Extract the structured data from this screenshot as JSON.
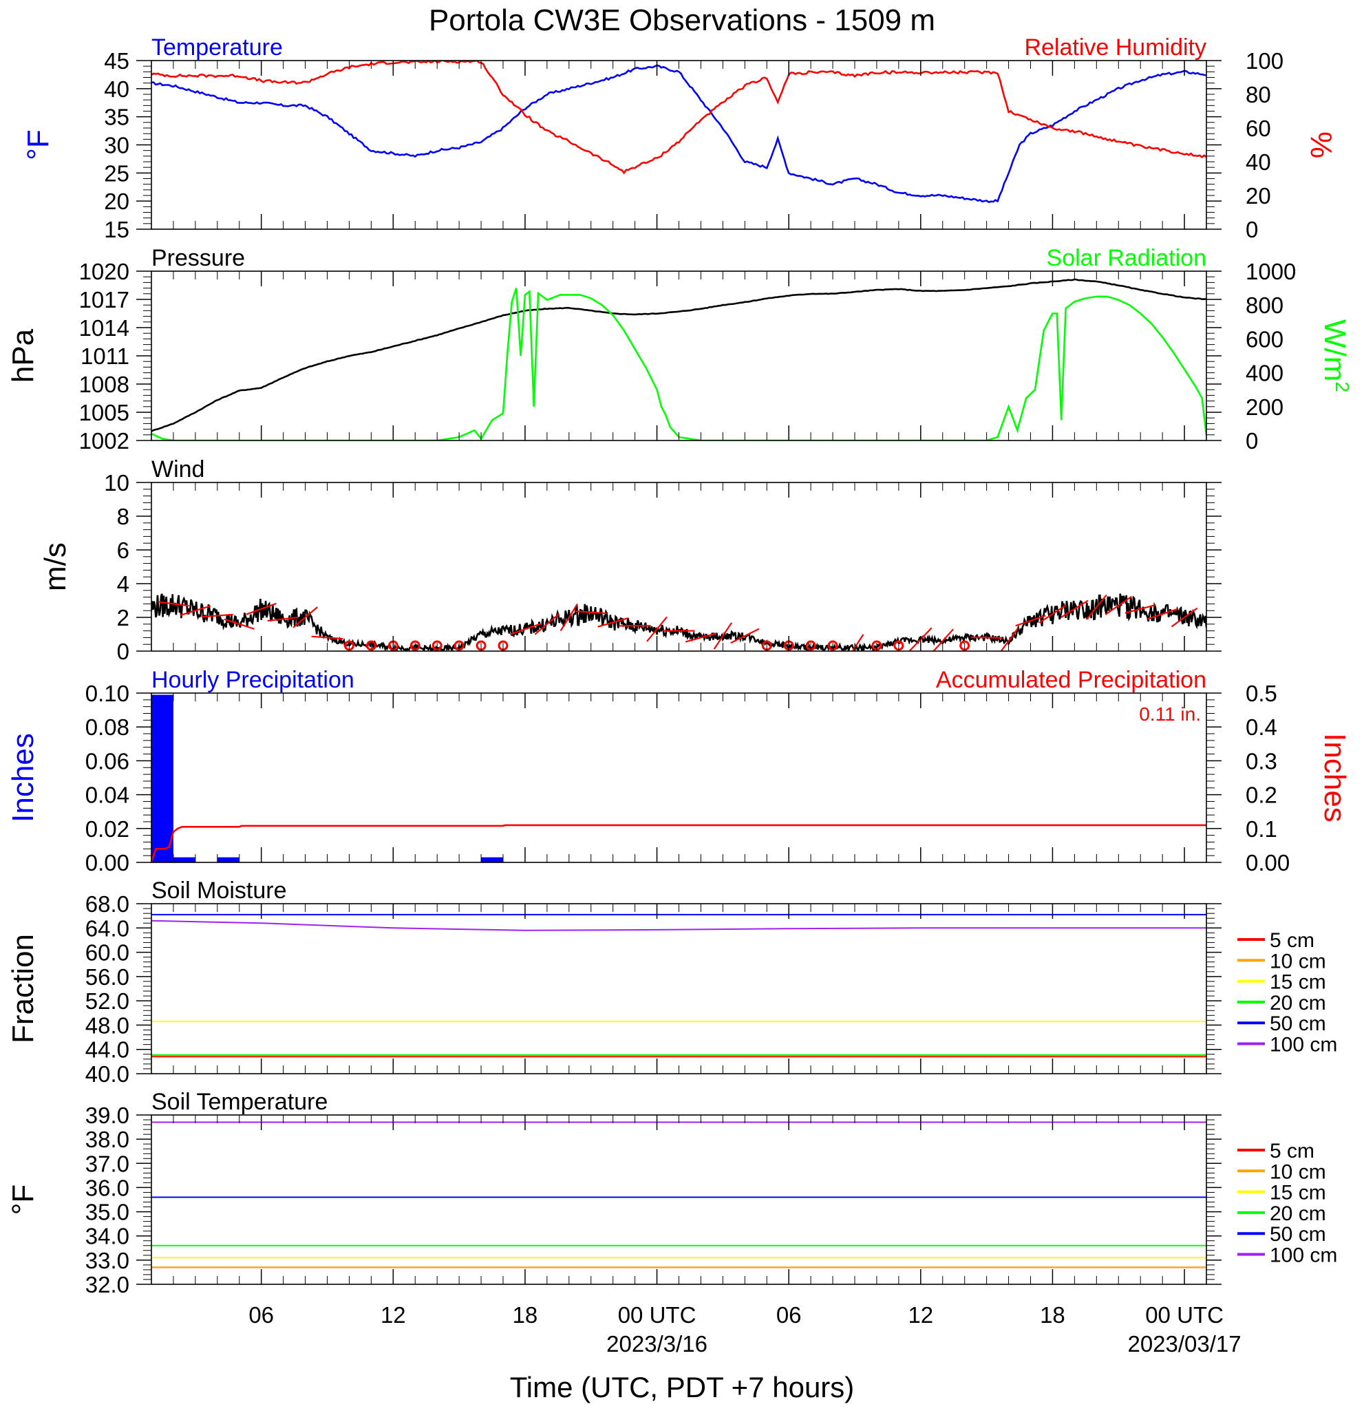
{
  "figure": {
    "title": "Portola CW3E Observations - 1509 m",
    "xlabel": "Time (UTC, PDT +7 hours)",
    "x_ticks": [
      {
        "hour": 6,
        "label": "06",
        "sub": ""
      },
      {
        "hour": 12,
        "label": "12",
        "sub": ""
      },
      {
        "hour": 18,
        "label": "18",
        "sub": ""
      },
      {
        "hour": 24,
        "label": "00 UTC",
        "sub": "2023/3/16"
      },
      {
        "hour": 30,
        "label": "06",
        "sub": ""
      },
      {
        "hour": 36,
        "label": "12",
        "sub": ""
      },
      {
        "hour": 42,
        "label": "18",
        "sub": ""
      },
      {
        "hour": 48,
        "label": "00 UTC",
        "sub": "2023/03/17"
      }
    ],
    "x_range_hours": [
      1,
      49
    ],
    "colors": {
      "blue": "#0000ff",
      "red": "#ff0000",
      "green": "#00ff00",
      "black": "#000000",
      "orange": "#ffa500",
      "yellow": "#ffff00",
      "purple": "#a020f0"
    }
  },
  "chart_data": [
    {
      "id": "temp_rh",
      "type": "line",
      "title_left": "Temperature",
      "title_right": "Relative Humidity",
      "ylabel_left": "°F",
      "ylabel_right": "%",
      "ylim_left": [
        15,
        45
      ],
      "yticks_left": [
        "15",
        "20",
        "25",
        "30",
        "35",
        "40",
        "45"
      ],
      "ylim_right": [
        0,
        100
      ],
      "yticks_right": [
        "0",
        "20",
        "40",
        "60",
        "80",
        "100"
      ],
      "series": [
        {
          "name": "Temperature",
          "axis": "left",
          "color": "#0000ff",
          "x": [
            1,
            2,
            3,
            4,
            5,
            6,
            7,
            8,
            9,
            10,
            11,
            12,
            13,
            14,
            15,
            16,
            17,
            18,
            19,
            20,
            21,
            22,
            23,
            24,
            25,
            26,
            27,
            28,
            29,
            29.5,
            30,
            31,
            32,
            33,
            34,
            35,
            36,
            37,
            38,
            39,
            39.5,
            40,
            40.5,
            41,
            42,
            43,
            44,
            45,
            46,
            47,
            48,
            49
          ],
          "y": [
            41,
            40.5,
            39.5,
            38.5,
            37.5,
            37.5,
            37,
            37,
            35,
            32,
            29,
            28.5,
            28,
            29,
            29.5,
            30.5,
            33,
            36.5,
            39,
            40,
            41,
            42,
            43.5,
            44,
            43,
            38,
            33,
            27,
            26,
            31,
            25,
            24,
            23,
            24,
            23,
            21.5,
            21,
            21,
            20.5,
            20,
            20,
            25,
            30,
            32,
            33.5,
            36,
            38,
            40,
            41.5,
            42.5,
            43,
            42.5
          ]
        },
        {
          "name": "Relative Humidity",
          "axis": "right",
          "color": "#ff0000",
          "x": [
            1,
            2,
            3,
            4,
            5,
            6,
            7,
            8,
            9,
            10,
            11,
            12,
            13,
            14,
            15,
            16,
            17,
            18,
            19,
            20,
            21,
            22,
            22.5,
            23,
            24,
            25,
            26,
            27,
            28,
            29,
            29.5,
            30,
            31,
            32,
            33,
            34,
            35,
            36,
            37,
            38,
            39,
            39.5,
            40,
            41,
            42,
            43,
            44,
            45,
            46,
            47,
            48,
            49
          ],
          "y": [
            92,
            91,
            91,
            91,
            91,
            88,
            87,
            87,
            92,
            96,
            98,
            99,
            99,
            99.5,
            99.5,
            99.5,
            80,
            68,
            58,
            52,
            45,
            38,
            34,
            37,
            42,
            52,
            65,
            75,
            85,
            90,
            75,
            92,
            93,
            93,
            91,
            93,
            93,
            93,
            93,
            93,
            93,
            93,
            70,
            65,
            60,
            58,
            55,
            52,
            49,
            47,
            45,
            43
          ]
        }
      ]
    },
    {
      "id": "pressure_solar",
      "type": "line",
      "title_left": "Pressure",
      "title_right": "Solar Radiation",
      "ylabel_left": "hPa",
      "ylabel_right": "W/m",
      "ylabel_right_sup": "2",
      "ylim_left": [
        1002,
        1020
      ],
      "yticks_left": [
        "1002",
        "1005",
        "1008",
        "1011",
        "1014",
        "1017",
        "1020"
      ],
      "ylim_right": [
        0,
        1000
      ],
      "yticks_right": [
        "0",
        "200",
        "400",
        "600",
        "800",
        "1000"
      ],
      "series": [
        {
          "name": "Pressure",
          "axis": "left",
          "color": "#000000",
          "x": [
            1,
            2,
            3,
            4,
            5,
            6,
            7,
            8,
            9,
            10,
            11,
            12,
            13,
            14,
            15,
            16,
            17,
            18,
            19,
            20,
            21,
            22,
            23,
            24,
            25,
            26,
            27,
            28,
            29,
            30,
            31,
            32,
            33,
            34,
            35,
            36,
            37,
            38,
            39,
            40,
            41,
            42,
            43,
            44,
            45,
            46,
            47,
            48,
            49
          ],
          "y": [
            1003,
            1003.8,
            1005,
            1006.3,
            1007.3,
            1007.6,
            1008.7,
            1009.7,
            1010.4,
            1011,
            1011.4,
            1012,
            1012.6,
            1013.2,
            1013.9,
            1014.6,
            1015.3,
            1015.8,
            1016,
            1016.1,
            1015.8,
            1015.5,
            1015.4,
            1015.5,
            1015.7,
            1016,
            1016.4,
            1016.7,
            1017.1,
            1017.4,
            1017.6,
            1017.6,
            1017.8,
            1018,
            1018.1,
            1017.9,
            1017.9,
            1018,
            1018.2,
            1018.4,
            1018.7,
            1018.9,
            1019.1,
            1018.9,
            1018.5,
            1018,
            1017.6,
            1017.2,
            1017
          ]
        },
        {
          "name": "Solar Radiation",
          "axis": "right",
          "color": "#00ff00",
          "x": [
            1,
            1.5,
            2,
            13,
            14,
            15,
            15.7,
            16,
            16.5,
            17,
            17.2,
            17.4,
            17.6,
            17.8,
            18,
            18.2,
            18.4,
            18.6,
            18.8,
            19,
            19.2,
            19.4,
            19.6,
            20,
            20.5,
            21,
            21.5,
            22,
            22.5,
            23,
            23.5,
            24,
            24.2,
            24.4,
            24.6,
            25,
            26,
            38,
            39,
            39.5,
            40,
            40.4,
            40.8,
            41.2,
            41.6,
            41.8,
            42,
            42.2,
            42.4,
            42.6,
            43,
            43.5,
            44,
            44.5,
            45,
            45.5,
            46,
            46.5,
            47,
            47.5,
            48,
            48.5,
            48.8,
            49
          ],
          "y": [
            40,
            10,
            0,
            0,
            0,
            20,
            60,
            10,
            120,
            160,
            520,
            820,
            900,
            500,
            860,
            880,
            200,
            870,
            850,
            830,
            840,
            850,
            860,
            860,
            860,
            840,
            800,
            740,
            650,
            540,
            430,
            300,
            200,
            150,
            80,
            20,
            0,
            0,
            0,
            20,
            200,
            60,
            250,
            300,
            650,
            700,
            750,
            750,
            120,
            780,
            820,
            840,
            850,
            850,
            830,
            800,
            750,
            690,
            610,
            520,
            420,
            320,
            250,
            30
          ]
        }
      ]
    },
    {
      "id": "wind",
      "type": "line",
      "title_left": "Wind",
      "title_right": "",
      "ylabel_left": "m/s",
      "ylim_left": [
        0,
        10
      ],
      "yticks_left": [
        "0",
        "2",
        "4",
        "6",
        "8",
        "10"
      ],
      "series": [
        {
          "name": "Wind",
          "axis": "left",
          "color": "#000000",
          "x": [
            1,
            2,
            3,
            4,
            5,
            6,
            7,
            8,
            9,
            10,
            11,
            12,
            13,
            14,
            15,
            16,
            17,
            18,
            19,
            20,
            21,
            22,
            23,
            24,
            25,
            26,
            27,
            28,
            29,
            30,
            31,
            32,
            33,
            34,
            35,
            36,
            37,
            38,
            39,
            40,
            41,
            42,
            43,
            44,
            45,
            46,
            47,
            48,
            49
          ],
          "y": [
            2.6,
            2.8,
            2.4,
            2.1,
            1.6,
            2.5,
            1.9,
            2.0,
            0.8,
            0.4,
            0.4,
            0.2,
            0.2,
            0.1,
            0.2,
            1.0,
            1.2,
            1.3,
            1.6,
            2.0,
            2.3,
            1.7,
            1.5,
            1.3,
            1.2,
            0.8,
            0.9,
            0.9,
            0.5,
            0.3,
            0.2,
            0.2,
            0.2,
            0.2,
            0.6,
            0.7,
            0.6,
            0.8,
            0.8,
            0.6,
            1.8,
            2.2,
            2.5,
            2.6,
            2.7,
            2.5,
            2.2,
            2.0,
            1.7
          ]
        }
      ],
      "calm_hours": [
        10,
        11,
        12,
        13,
        14,
        15,
        16,
        17,
        29,
        30,
        31,
        32,
        34,
        35,
        38
      ]
    },
    {
      "id": "precip",
      "type": "bar",
      "title_left": "Hourly Precipitation",
      "title_right": "Accumulated Precipitation",
      "annotation": "0.11 in.",
      "ylabel_left": "Inches",
      "ylabel_right": "Inches",
      "ylim_left": [
        0,
        0.1
      ],
      "yticks_left": [
        "0.00",
        "0.02",
        "0.04",
        "0.06",
        "0.08",
        "0.10"
      ],
      "ylim_right": [
        0,
        0.5
      ],
      "yticks_right": [
        "0.00",
        "0.1",
        "0.2",
        "0.3",
        "0.4",
        "0.5"
      ],
      "bars": [
        {
          "x0": 1,
          "x1": 2,
          "value": 0.099
        },
        {
          "x0": 2,
          "x1": 3,
          "value": 0.003
        },
        {
          "x0": 4,
          "x1": 5,
          "value": 0.003
        },
        {
          "x0": 16,
          "x1": 17,
          "value": 0.003
        }
      ],
      "series": [
        {
          "name": "Accumulated Precipitation",
          "axis": "right",
          "color": "#ff0000",
          "x": [
            1,
            1.2,
            1.6,
            1.8,
            2,
            2.2,
            2.4,
            5,
            5.1,
            17,
            17.1,
            49
          ],
          "y": [
            0,
            0.04,
            0.04,
            0.045,
            0.09,
            0.1,
            0.105,
            0.105,
            0.108,
            0.108,
            0.11,
            0.11
          ]
        }
      ]
    },
    {
      "id": "soil_moisture",
      "type": "line",
      "title_left": "Soil Moisture",
      "title_right": "",
      "ylabel_left": "Fraction",
      "ylim_left": [
        40,
        68
      ],
      "yticks_left": [
        "40.0",
        "44.0",
        "48.0",
        "52.0",
        "56.0",
        "60.0",
        "64.0",
        "68.0"
      ],
      "legend": [
        "5 cm",
        "10 cm",
        "15 cm",
        "20 cm",
        "50 cm",
        "100 cm"
      ],
      "series": [
        {
          "name": "5 cm",
          "color": "#ff0000",
          "x": [
            1,
            49
          ],
          "y": [
            42.8,
            42.8
          ]
        },
        {
          "name": "10 cm",
          "color": "#ffa500",
          "x": [
            1,
            49
          ],
          "y": [
            43.0,
            43.0
          ]
        },
        {
          "name": "15 cm",
          "color": "#ffff00",
          "x": [
            1,
            49
          ],
          "y": [
            48.6,
            48.6
          ]
        },
        {
          "name": "20 cm",
          "color": "#00ff00",
          "x": [
            1,
            49
          ],
          "y": [
            43.1,
            43.1
          ]
        },
        {
          "name": "50 cm",
          "color": "#0000ff",
          "x": [
            1,
            49
          ],
          "y": [
            66.2,
            66.2
          ]
        },
        {
          "name": "100 cm",
          "color": "#a020f0",
          "x": [
            1,
            6,
            12,
            18,
            24,
            30,
            36,
            42,
            49
          ],
          "y": [
            65.2,
            64.8,
            64.0,
            63.6,
            63.7,
            63.9,
            64.0,
            64.0,
            64.0
          ]
        }
      ]
    },
    {
      "id": "soil_temperature",
      "type": "line",
      "title_left": "Soil Temperature",
      "title_right": "",
      "ylabel_left": "°F",
      "ylim_left": [
        32,
        39
      ],
      "yticks_left": [
        "32.0",
        "33.0",
        "34.0",
        "35.0",
        "36.0",
        "37.0",
        "38.0",
        "39.0"
      ],
      "legend": [
        "5 cm",
        "10 cm",
        "15 cm",
        "20 cm",
        "50 cm",
        "100 cm"
      ],
      "series": [
        {
          "name": "5 cm",
          "color": "#ff0000",
          "x": [
            1,
            49
          ],
          "y": [
            32.7,
            32.7
          ]
        },
        {
          "name": "10 cm",
          "color": "#ffa500",
          "x": [
            1,
            49
          ],
          "y": [
            32.7,
            32.7
          ]
        },
        {
          "name": "15 cm",
          "color": "#ffff00",
          "x": [
            1,
            49
          ],
          "y": [
            33.1,
            33.1
          ]
        },
        {
          "name": "20 cm",
          "color": "#00ff00",
          "x": [
            1,
            49
          ],
          "y": [
            33.6,
            33.6
          ]
        },
        {
          "name": "50 cm",
          "color": "#0000ff",
          "x": [
            1,
            49
          ],
          "y": [
            35.6,
            35.6
          ]
        },
        {
          "name": "100 cm",
          "color": "#a020f0",
          "x": [
            1,
            49
          ],
          "y": [
            38.7,
            38.7
          ]
        }
      ]
    }
  ]
}
